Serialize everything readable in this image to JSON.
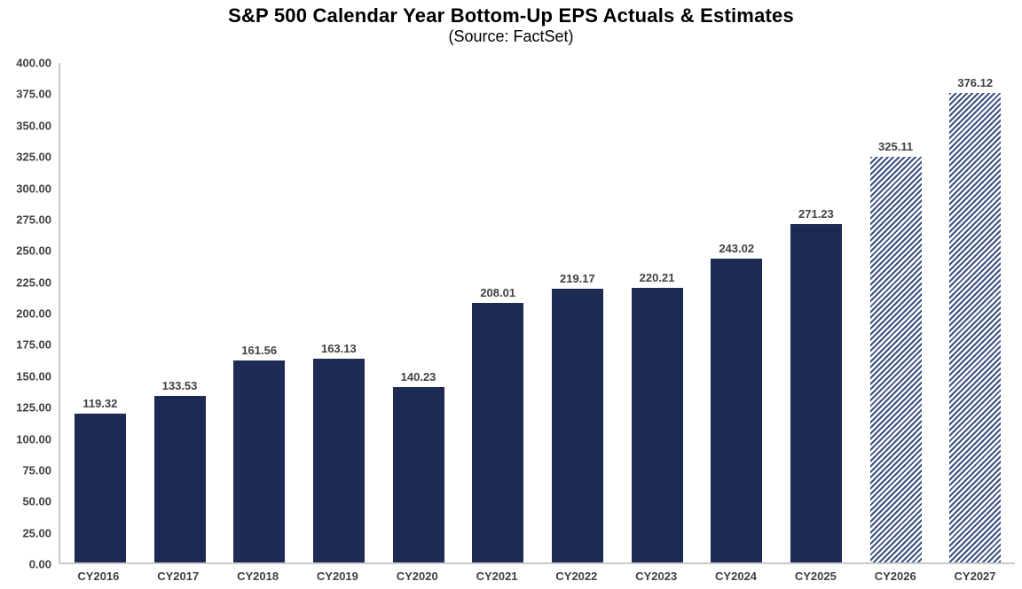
{
  "chart_data": {
    "type": "bar",
    "title": "S&P 500 Calendar Year Bottom-Up EPS Actuals & Estimates",
    "subtitle": "(Source: FactSet)",
    "categories": [
      "CY2016",
      "CY2017",
      "CY2018",
      "CY2019",
      "CY2020",
      "CY2021",
      "CY2022",
      "CY2023",
      "CY2024",
      "CY2025",
      "CY2026",
      "CY2027"
    ],
    "values": [
      119.32,
      133.53,
      161.56,
      163.13,
      140.23,
      208.01,
      219.17,
      220.21,
      243.02,
      271.23,
      325.11,
      376.12
    ],
    "data_labels": [
      "119.32",
      "133.53",
      "161.56",
      "163.13",
      "140.23",
      "208.01",
      "219.17",
      "220.21",
      "243.02",
      "271.23",
      "325.11",
      "376.12"
    ],
    "estimate_flags": [
      false,
      false,
      false,
      false,
      false,
      false,
      false,
      false,
      false,
      false,
      true,
      true
    ],
    "ylim": [
      0,
      400
    ],
    "ytick_step": 25,
    "ytick_labels": [
      "400.00",
      "375.00",
      "350.00",
      "325.00",
      "300.00",
      "275.00",
      "250.00",
      "225.00",
      "200.00",
      "175.00",
      "150.00",
      "125.00",
      "100.00",
      "75.00",
      "50.00",
      "25.00",
      "0.00"
    ],
    "xlabel": "",
    "ylabel": "",
    "grid": false,
    "legend": "none",
    "bar_style_actual": "solid",
    "bar_style_estimate": "diagonal-hatch"
  },
  "colors": {
    "bar_solid": "#1c2a54",
    "bar_hatch_stripe": "#3e5283",
    "axis_line": "#c9c9c9",
    "tick_text": "#404040",
    "title_text": "#000000"
  }
}
